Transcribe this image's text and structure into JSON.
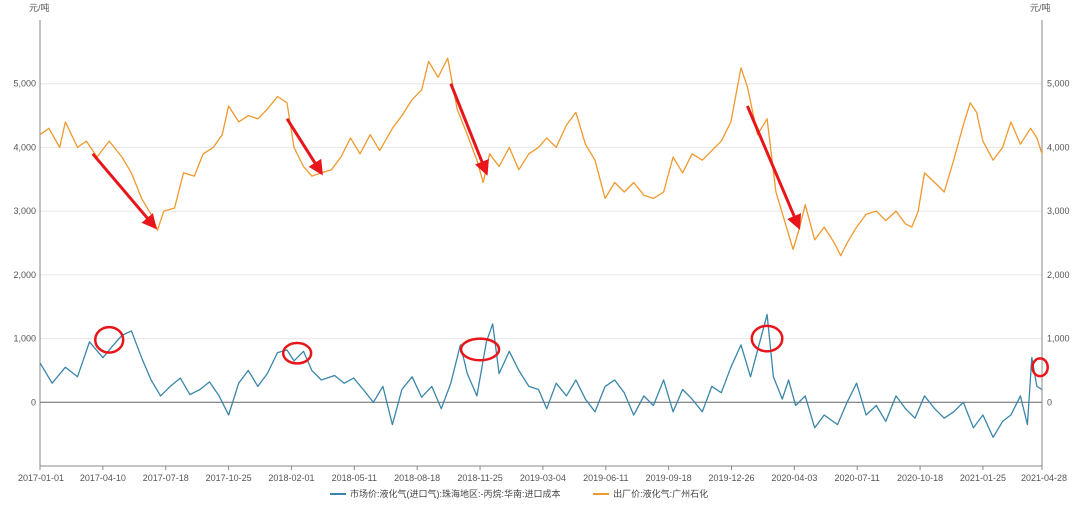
{
  "chart_data": {
    "type": "line",
    "y_unit_left": "元/吨",
    "y_unit_right": "元/吨",
    "ylim": [
      -1000,
      6000
    ],
    "y_ticks": [
      {
        "value": 0,
        "label": "0"
      },
      {
        "value": 1000,
        "label": "1,000"
      },
      {
        "value": 2000,
        "label": "2,000"
      },
      {
        "value": 3000,
        "label": "3,000"
      },
      {
        "value": 4000,
        "label": "4,000"
      },
      {
        "value": 5000,
        "label": "5,000"
      }
    ],
    "x_ticks": [
      "2017-01-01",
      "2017-04-10",
      "2017-07-18",
      "2017-10-25",
      "2018-02-01",
      "2018-05-11",
      "2018-08-18",
      "2018-11-25",
      "2019-03-04",
      "2019-06-11",
      "2019-09-18",
      "2019-12-26",
      "2020-04-03",
      "2020-07-11",
      "2020-10-18",
      "2021-01-25",
      "2021-04-28"
    ],
    "grid": true,
    "legend_position": "bottom",
    "series": [
      {
        "name": "市场价:液化气(进口气):珠海地区:-丙烷:华南:进口成本",
        "color": "#3a86aa",
        "points": [
          [
            "2017-01-01",
            620
          ],
          [
            "2017-01-20",
            300
          ],
          [
            "2017-02-10",
            550
          ],
          [
            "2017-03-01",
            400
          ],
          [
            "2017-03-20",
            950
          ],
          [
            "2017-04-10",
            700
          ],
          [
            "2017-04-25",
            880
          ],
          [
            "2017-05-10",
            1050
          ],
          [
            "2017-05-25",
            1120
          ],
          [
            "2017-06-10",
            700
          ],
          [
            "2017-06-25",
            350
          ],
          [
            "2017-07-10",
            100
          ],
          [
            "2017-07-25",
            250
          ],
          [
            "2017-08-10",
            380
          ],
          [
            "2017-08-25",
            120
          ],
          [
            "2017-09-10",
            200
          ],
          [
            "2017-09-25",
            320
          ],
          [
            "2017-10-10",
            100
          ],
          [
            "2017-10-25",
            -200
          ],
          [
            "2017-11-10",
            300
          ],
          [
            "2017-11-25",
            500
          ],
          [
            "2017-12-10",
            250
          ],
          [
            "2017-12-25",
            450
          ],
          [
            "2018-01-10",
            780
          ],
          [
            "2018-01-25",
            820
          ],
          [
            "2018-02-05",
            650
          ],
          [
            "2018-02-20",
            800
          ],
          [
            "2018-03-05",
            500
          ],
          [
            "2018-03-20",
            350
          ],
          [
            "2018-04-10",
            420
          ],
          [
            "2018-04-25",
            300
          ],
          [
            "2018-05-10",
            380
          ],
          [
            "2018-05-25",
            200
          ],
          [
            "2018-06-10",
            0
          ],
          [
            "2018-06-25",
            250
          ],
          [
            "2018-07-10",
            -350
          ],
          [
            "2018-07-25",
            200
          ],
          [
            "2018-08-10",
            400
          ],
          [
            "2018-08-25",
            80
          ],
          [
            "2018-09-10",
            250
          ],
          [
            "2018-09-25",
            -100
          ],
          [
            "2018-10-10",
            300
          ],
          [
            "2018-10-25",
            900
          ],
          [
            "2018-11-05",
            450
          ],
          [
            "2018-11-20",
            100
          ],
          [
            "2018-12-05",
            950
          ],
          [
            "2018-12-15",
            1230
          ],
          [
            "2018-12-25",
            450
          ],
          [
            "2019-01-10",
            800
          ],
          [
            "2019-01-25",
            500
          ],
          [
            "2019-02-10",
            250
          ],
          [
            "2019-02-25",
            200
          ],
          [
            "2019-03-10",
            -100
          ],
          [
            "2019-03-25",
            300
          ],
          [
            "2019-04-10",
            100
          ],
          [
            "2019-04-25",
            350
          ],
          [
            "2019-05-10",
            50
          ],
          [
            "2019-05-25",
            -150
          ],
          [
            "2019-06-10",
            250
          ],
          [
            "2019-06-25",
            350
          ],
          [
            "2019-07-10",
            150
          ],
          [
            "2019-07-25",
            -200
          ],
          [
            "2019-08-10",
            100
          ],
          [
            "2019-08-25",
            -50
          ],
          [
            "2019-09-10",
            350
          ],
          [
            "2019-09-25",
            -150
          ],
          [
            "2019-10-10",
            200
          ],
          [
            "2019-10-25",
            50
          ],
          [
            "2019-11-10",
            -150
          ],
          [
            "2019-11-25",
            250
          ],
          [
            "2019-12-10",
            150
          ],
          [
            "2019-12-25",
            550
          ],
          [
            "2020-01-10",
            900
          ],
          [
            "2020-01-25",
            400
          ],
          [
            "2020-02-10",
            1000
          ],
          [
            "2020-02-20",
            1380
          ],
          [
            "2020-03-01",
            400
          ],
          [
            "2020-03-15",
            50
          ],
          [
            "2020-03-25",
            350
          ],
          [
            "2020-04-05",
            -50
          ],
          [
            "2020-04-20",
            100
          ],
          [
            "2020-05-05",
            -400
          ],
          [
            "2020-05-20",
            -200
          ],
          [
            "2020-06-10",
            -350
          ],
          [
            "2020-06-25",
            0
          ],
          [
            "2020-07-10",
            300
          ],
          [
            "2020-07-25",
            -200
          ],
          [
            "2020-08-10",
            -50
          ],
          [
            "2020-08-25",
            -300
          ],
          [
            "2020-09-10",
            100
          ],
          [
            "2020-09-25",
            -100
          ],
          [
            "2020-10-10",
            -250
          ],
          [
            "2020-10-25",
            100
          ],
          [
            "2020-11-10",
            -100
          ],
          [
            "2020-11-25",
            -250
          ],
          [
            "2020-12-10",
            -150
          ],
          [
            "2020-12-25",
            0
          ],
          [
            "2021-01-10",
            -400
          ],
          [
            "2021-01-25",
            -200
          ],
          [
            "2021-02-10",
            -550
          ],
          [
            "2021-02-25",
            -300
          ],
          [
            "2021-03-10",
            -200
          ],
          [
            "2021-03-25",
            100
          ],
          [
            "2021-04-05",
            -350
          ],
          [
            "2021-04-12",
            700
          ],
          [
            "2021-04-20",
            250
          ],
          [
            "2021-04-28",
            200
          ]
        ]
      },
      {
        "name": "出厂价:液化气:广州石化",
        "color": "#f0992e",
        "points": [
          [
            "2017-01-01",
            4200
          ],
          [
            "2017-01-15",
            4300
          ],
          [
            "2017-02-01",
            4000
          ],
          [
            "2017-02-10",
            4400
          ],
          [
            "2017-03-01",
            4000
          ],
          [
            "2017-03-15",
            4100
          ],
          [
            "2017-04-01",
            3850
          ],
          [
            "2017-04-20",
            4100
          ],
          [
            "2017-05-10",
            3850
          ],
          [
            "2017-05-25",
            3600
          ],
          [
            "2017-06-10",
            3200
          ],
          [
            "2017-06-25",
            2950
          ],
          [
            "2017-07-05",
            2700
          ],
          [
            "2017-07-15",
            3000
          ],
          [
            "2017-08-01",
            3050
          ],
          [
            "2017-08-15",
            3600
          ],
          [
            "2017-09-01",
            3550
          ],
          [
            "2017-09-15",
            3900
          ],
          [
            "2017-10-01",
            4000
          ],
          [
            "2017-10-15",
            4200
          ],
          [
            "2017-10-25",
            4650
          ],
          [
            "2017-11-10",
            4400
          ],
          [
            "2017-11-25",
            4500
          ],
          [
            "2017-12-10",
            4450
          ],
          [
            "2017-12-25",
            4600
          ],
          [
            "2018-01-10",
            4800
          ],
          [
            "2018-01-25",
            4700
          ],
          [
            "2018-02-05",
            4000
          ],
          [
            "2018-02-20",
            3700
          ],
          [
            "2018-03-05",
            3550
          ],
          [
            "2018-03-20",
            3600
          ],
          [
            "2018-04-05",
            3650
          ],
          [
            "2018-04-20",
            3850
          ],
          [
            "2018-05-05",
            4150
          ],
          [
            "2018-05-20",
            3900
          ],
          [
            "2018-06-05",
            4200
          ],
          [
            "2018-06-20",
            3950
          ],
          [
            "2018-07-10",
            4300
          ],
          [
            "2018-07-25",
            4500
          ],
          [
            "2018-08-10",
            4750
          ],
          [
            "2018-08-25",
            4900
          ],
          [
            "2018-09-05",
            5350
          ],
          [
            "2018-09-20",
            5100
          ],
          [
            "2018-10-05",
            5400
          ],
          [
            "2018-10-20",
            4600
          ],
          [
            "2018-11-05",
            4200
          ],
          [
            "2018-11-20",
            3800
          ],
          [
            "2018-11-30",
            3450
          ],
          [
            "2018-12-10",
            3900
          ],
          [
            "2018-12-25",
            3700
          ],
          [
            "2019-01-10",
            4000
          ],
          [
            "2019-01-25",
            3650
          ],
          [
            "2019-02-10",
            3900
          ],
          [
            "2019-02-25",
            4000
          ],
          [
            "2019-03-10",
            4150
          ],
          [
            "2019-03-25",
            4000
          ],
          [
            "2019-04-10",
            4350
          ],
          [
            "2019-04-25",
            4550
          ],
          [
            "2019-05-10",
            4050
          ],
          [
            "2019-05-25",
            3800
          ],
          [
            "2019-06-10",
            3200
          ],
          [
            "2019-06-25",
            3450
          ],
          [
            "2019-07-10",
            3300
          ],
          [
            "2019-07-25",
            3450
          ],
          [
            "2019-08-10",
            3250
          ],
          [
            "2019-08-25",
            3200
          ],
          [
            "2019-09-10",
            3300
          ],
          [
            "2019-09-25",
            3850
          ],
          [
            "2019-10-10",
            3600
          ],
          [
            "2019-10-25",
            3900
          ],
          [
            "2019-11-10",
            3800
          ],
          [
            "2019-11-25",
            3950
          ],
          [
            "2019-12-10",
            4100
          ],
          [
            "2019-12-25",
            4400
          ],
          [
            "2020-01-10",
            5250
          ],
          [
            "2020-01-20",
            4950
          ],
          [
            "2020-02-05",
            4200
          ],
          [
            "2020-02-20",
            4450
          ],
          [
            "2020-03-05",
            3300
          ],
          [
            "2020-03-20",
            2800
          ],
          [
            "2020-04-01",
            2400
          ],
          [
            "2020-04-10",
            2700
          ],
          [
            "2020-04-20",
            3100
          ],
          [
            "2020-05-05",
            2550
          ],
          [
            "2020-05-20",
            2750
          ],
          [
            "2020-06-05",
            2500
          ],
          [
            "2020-06-15",
            2300
          ],
          [
            "2020-06-25",
            2500
          ],
          [
            "2020-07-10",
            2750
          ],
          [
            "2020-07-25",
            2950
          ],
          [
            "2020-08-10",
            3000
          ],
          [
            "2020-08-25",
            2850
          ],
          [
            "2020-09-10",
            3000
          ],
          [
            "2020-09-25",
            2800
          ],
          [
            "2020-10-05",
            2750
          ],
          [
            "2020-10-15",
            3000
          ],
          [
            "2020-10-25",
            3600
          ],
          [
            "2020-11-10",
            3450
          ],
          [
            "2020-11-25",
            3300
          ],
          [
            "2020-12-10",
            3800
          ],
          [
            "2020-12-25",
            4350
          ],
          [
            "2021-01-05",
            4700
          ],
          [
            "2021-01-15",
            4550
          ],
          [
            "2021-01-25",
            4100
          ],
          [
            "2021-02-10",
            3800
          ],
          [
            "2021-02-25",
            4000
          ],
          [
            "2021-03-10",
            4400
          ],
          [
            "2021-03-25",
            4050
          ],
          [
            "2021-04-10",
            4300
          ],
          [
            "2021-04-20",
            4150
          ],
          [
            "2021-04-28",
            3900
          ]
        ]
      }
    ],
    "annotations": {
      "arrows": [
        {
          "from": [
            "2017-03-25",
            3900
          ],
          "to": [
            "2017-07-01",
            2750
          ]
        },
        {
          "from": [
            "2018-01-25",
            4450
          ],
          "to": [
            "2018-03-20",
            3600
          ]
        },
        {
          "from": [
            "2018-10-10",
            5000
          ],
          "to": [
            "2018-12-05",
            3600
          ]
        },
        {
          "from": [
            "2020-01-20",
            4650
          ],
          "to": [
            "2020-04-10",
            2750
          ]
        }
      ],
      "circles": [
        {
          "center": [
            "2017-04-20",
            980
          ],
          "rx_days": 22,
          "ry_value": 200
        },
        {
          "center": [
            "2018-02-10",
            770
          ],
          "rx_days": 22,
          "ry_value": 160
        },
        {
          "center": [
            "2018-11-25",
            830
          ],
          "rx_days": 30,
          "ry_value": 170
        },
        {
          "center": [
            "2020-02-20",
            1000
          ],
          "rx_days": 24,
          "ry_value": 200
        },
        {
          "center": [
            "2021-04-25",
            550
          ],
          "rx_days": 12,
          "ry_value": 140
        }
      ]
    }
  }
}
